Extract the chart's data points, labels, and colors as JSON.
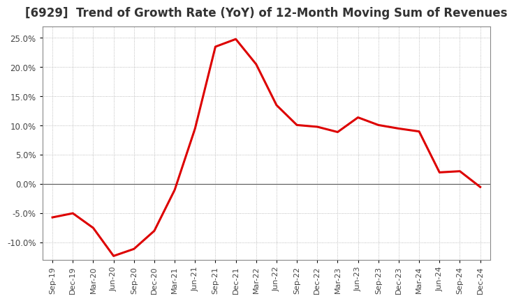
{
  "title": "[6929]  Trend of Growth Rate (YoY) of 12-Month Moving Sum of Revenues",
  "title_fontsize": 12,
  "title_color": "#333333",
  "background_color": "#ffffff",
  "plot_bg_color": "#ffffff",
  "line_color": "#dd0000",
  "line_width": 2.2,
  "ylim": [
    -0.13,
    0.27
  ],
  "yticks": [
    -0.1,
    -0.05,
    0.0,
    0.05,
    0.1,
    0.15,
    0.2,
    0.25
  ],
  "x_labels": [
    "Sep-19",
    "Dec-19",
    "Mar-20",
    "Jun-20",
    "Sep-20",
    "Dec-20",
    "Mar-21",
    "Jun-21",
    "Sep-21",
    "Dec-21",
    "Mar-22",
    "Jun-22",
    "Sep-22",
    "Dec-22",
    "Mar-23",
    "Jun-23",
    "Sep-23",
    "Dec-23",
    "Mar-24",
    "Jun-24",
    "Sep-24",
    "Dec-24"
  ],
  "y_values": [
    -0.057,
    -0.05,
    -0.075,
    -0.123,
    -0.111,
    -0.08,
    -0.01,
    0.095,
    0.235,
    0.248,
    0.205,
    0.135,
    0.101,
    0.098,
    0.089,
    0.114,
    0.101,
    0.095,
    0.09,
    0.02,
    0.022,
    -0.005
  ]
}
